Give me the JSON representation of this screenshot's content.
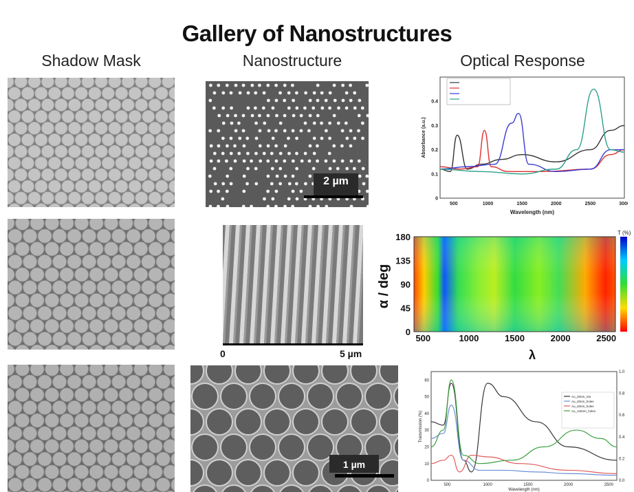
{
  "page": {
    "title": "Gallery of Nanostructures",
    "columns": [
      "Shadow Mask",
      "Nanostructure",
      "Optical Response"
    ]
  },
  "scale_bars": {
    "row1": "2 µm",
    "row2_start": "0",
    "row2_end": "5 µm",
    "row3": "1 µm"
  },
  "chart_data": [
    {
      "type": "line",
      "xlabel": "Wavelength (nm)",
      "ylabel": "Absorbance (a.u.)",
      "x_ticks": [
        "500",
        "1000",
        "1500",
        "2000",
        "2500",
        "3000"
      ],
      "y_ticks": [
        "0",
        "0.1",
        "0.2",
        "0.3",
        "0.4"
      ],
      "xlim": [
        300,
        3000
      ],
      "ylim": [
        0,
        0.5
      ],
      "legend_position": "top-left",
      "series": [
        {
          "color": "#333333",
          "x": [
            300,
            450,
            550,
            700,
            900,
            1200,
            1500,
            2000,
            2500,
            2800,
            3000
          ],
          "y": [
            0.12,
            0.11,
            0.26,
            0.12,
            0.14,
            0.16,
            0.18,
            0.15,
            0.2,
            0.28,
            0.3
          ]
        },
        {
          "color": "#e03030",
          "x": [
            300,
            600,
            850,
            950,
            1050,
            1300,
            1800,
            2500,
            2800,
            3000
          ],
          "y": [
            0.13,
            0.12,
            0.13,
            0.28,
            0.13,
            0.11,
            0.11,
            0.12,
            0.18,
            0.2
          ]
        },
        {
          "color": "#3a3ad0",
          "x": [
            300,
            700,
            1100,
            1350,
            1450,
            1600,
            2000,
            2500,
            2800,
            3000
          ],
          "y": [
            0.12,
            0.13,
            0.14,
            0.31,
            0.35,
            0.14,
            0.11,
            0.12,
            0.2,
            0.2
          ]
        },
        {
          "color": "#2aa08a",
          "x": [
            300,
            900,
            1500,
            2000,
            2300,
            2550,
            2800,
            3000
          ],
          "y": [
            0.12,
            0.11,
            0.1,
            0.12,
            0.2,
            0.45,
            0.2,
            0.19
          ]
        }
      ]
    },
    {
      "type": "heatmap",
      "xlabel": "λ",
      "ylabel": "α / deg",
      "x_ticks": [
        "500",
        "1000",
        "1500",
        "2000",
        "2500"
      ],
      "y_ticks": [
        "0",
        "45",
        "90",
        "135",
        "180"
      ],
      "xlim": [
        400,
        2600
      ],
      "ylim": [
        0,
        180
      ],
      "colorbar_label": "T (%)"
    },
    {
      "type": "line",
      "xlabel": "Wavelength (nm)",
      "ylabel": "Transmission (%)",
      "legend_position": "right",
      "legend": [
        "Au_20nm_Sio",
        "Au_20nm_holes",
        "Au_40nm_holes",
        "Au_120nm_holes"
      ],
      "y_ticks": [
        "0",
        "10",
        "20",
        "30",
        "40",
        "50",
        "60"
      ],
      "y2_ticks": [
        "0.0",
        "0.2",
        "0.4",
        "0.6",
        "0.8",
        "1.0"
      ],
      "x_ticks": [
        "500",
        "1000",
        "1500",
        "2000",
        "2500"
      ],
      "xlim": [
        300,
        2600
      ],
      "ylim": [
        0,
        65
      ],
      "series": [
        {
          "color": "#333333",
          "x": [
            300,
            450,
            550,
            700,
            800,
            1000,
            1200,
            1600,
            2000,
            2600
          ],
          "y": [
            35,
            33,
            58,
            12,
            5,
            58,
            50,
            35,
            20,
            12
          ]
        },
        {
          "color": "#6a8fd6",
          "x": [
            300,
            450,
            550,
            700,
            900,
            1200,
            1600,
            2000,
            2600
          ],
          "y": [
            25,
            28,
            45,
            12,
            6,
            6,
            5,
            4,
            3
          ]
        },
        {
          "color": "#e05a5a",
          "x": [
            300,
            450,
            550,
            650,
            800,
            1000,
            1400,
            2000,
            2600
          ],
          "y": [
            10,
            12,
            15,
            5,
            15,
            14,
            10,
            6,
            4
          ]
        },
        {
          "color": "#3aa040",
          "x": [
            300,
            450,
            550,
            700,
            900,
            1300,
            1700,
            2100,
            2400,
            2600
          ],
          "y": [
            20,
            30,
            60,
            15,
            10,
            12,
            20,
            30,
            25,
            20
          ]
        }
      ]
    }
  ]
}
